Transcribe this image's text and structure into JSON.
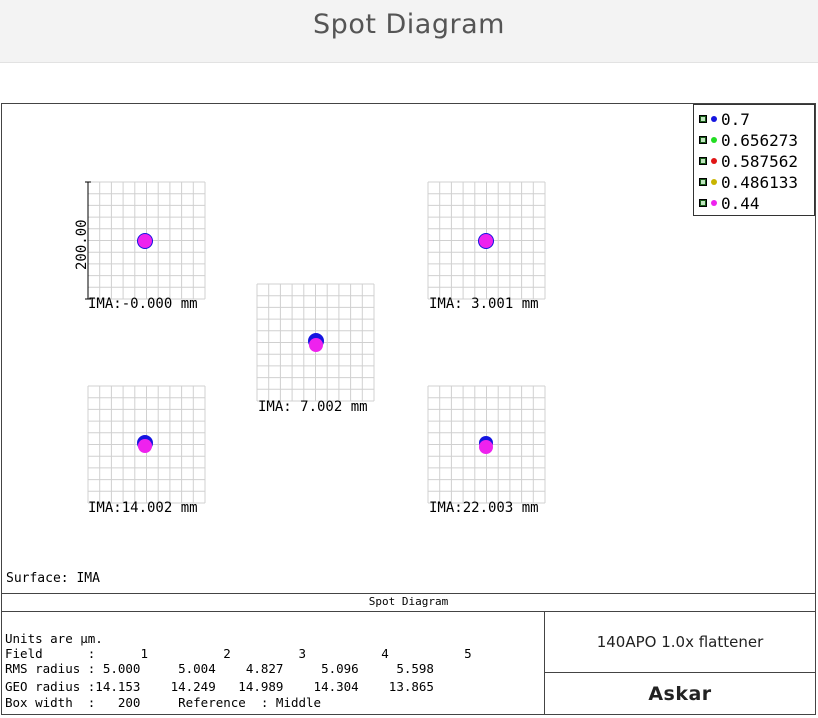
{
  "header": {
    "title": "Spot Diagram"
  },
  "legend": [
    {
      "label": "0.7",
      "color": "#1515e0"
    },
    {
      "label": "0.656273",
      "color": "#22dd22"
    },
    {
      "label": "0.587562",
      "color": "#e01515"
    },
    {
      "label": "0.486133",
      "color": "#c8b400"
    },
    {
      "label": "0.44",
      "color": "#ee22ee"
    }
  ],
  "scale_label": "200.00",
  "fields": [
    {
      "label": "IMA:-0.000 mm"
    },
    {
      "label": "IMA: 3.001 mm"
    },
    {
      "label": "IMA: 7.002 mm"
    },
    {
      "label": "IMA:14.002 mm"
    },
    {
      "label": "IMA:22.003 mm"
    }
  ],
  "surface": "Surface: IMA",
  "caption": "Spot Diagram",
  "info": {
    "units": "Units are µm.",
    "field_row": "Field      :      1          2         3          4          5",
    "rms_row": "RMS radius : 5.000     5.004    4.827     5.096     5.598",
    "geo_row": "GEO radius :14.153    14.249   14.989    14.304    13.865",
    "box_row": "Box width  :   200     Reference  : Middle"
  },
  "title_box": "140APO 1.0x flattener",
  "brand": "Askar"
}
